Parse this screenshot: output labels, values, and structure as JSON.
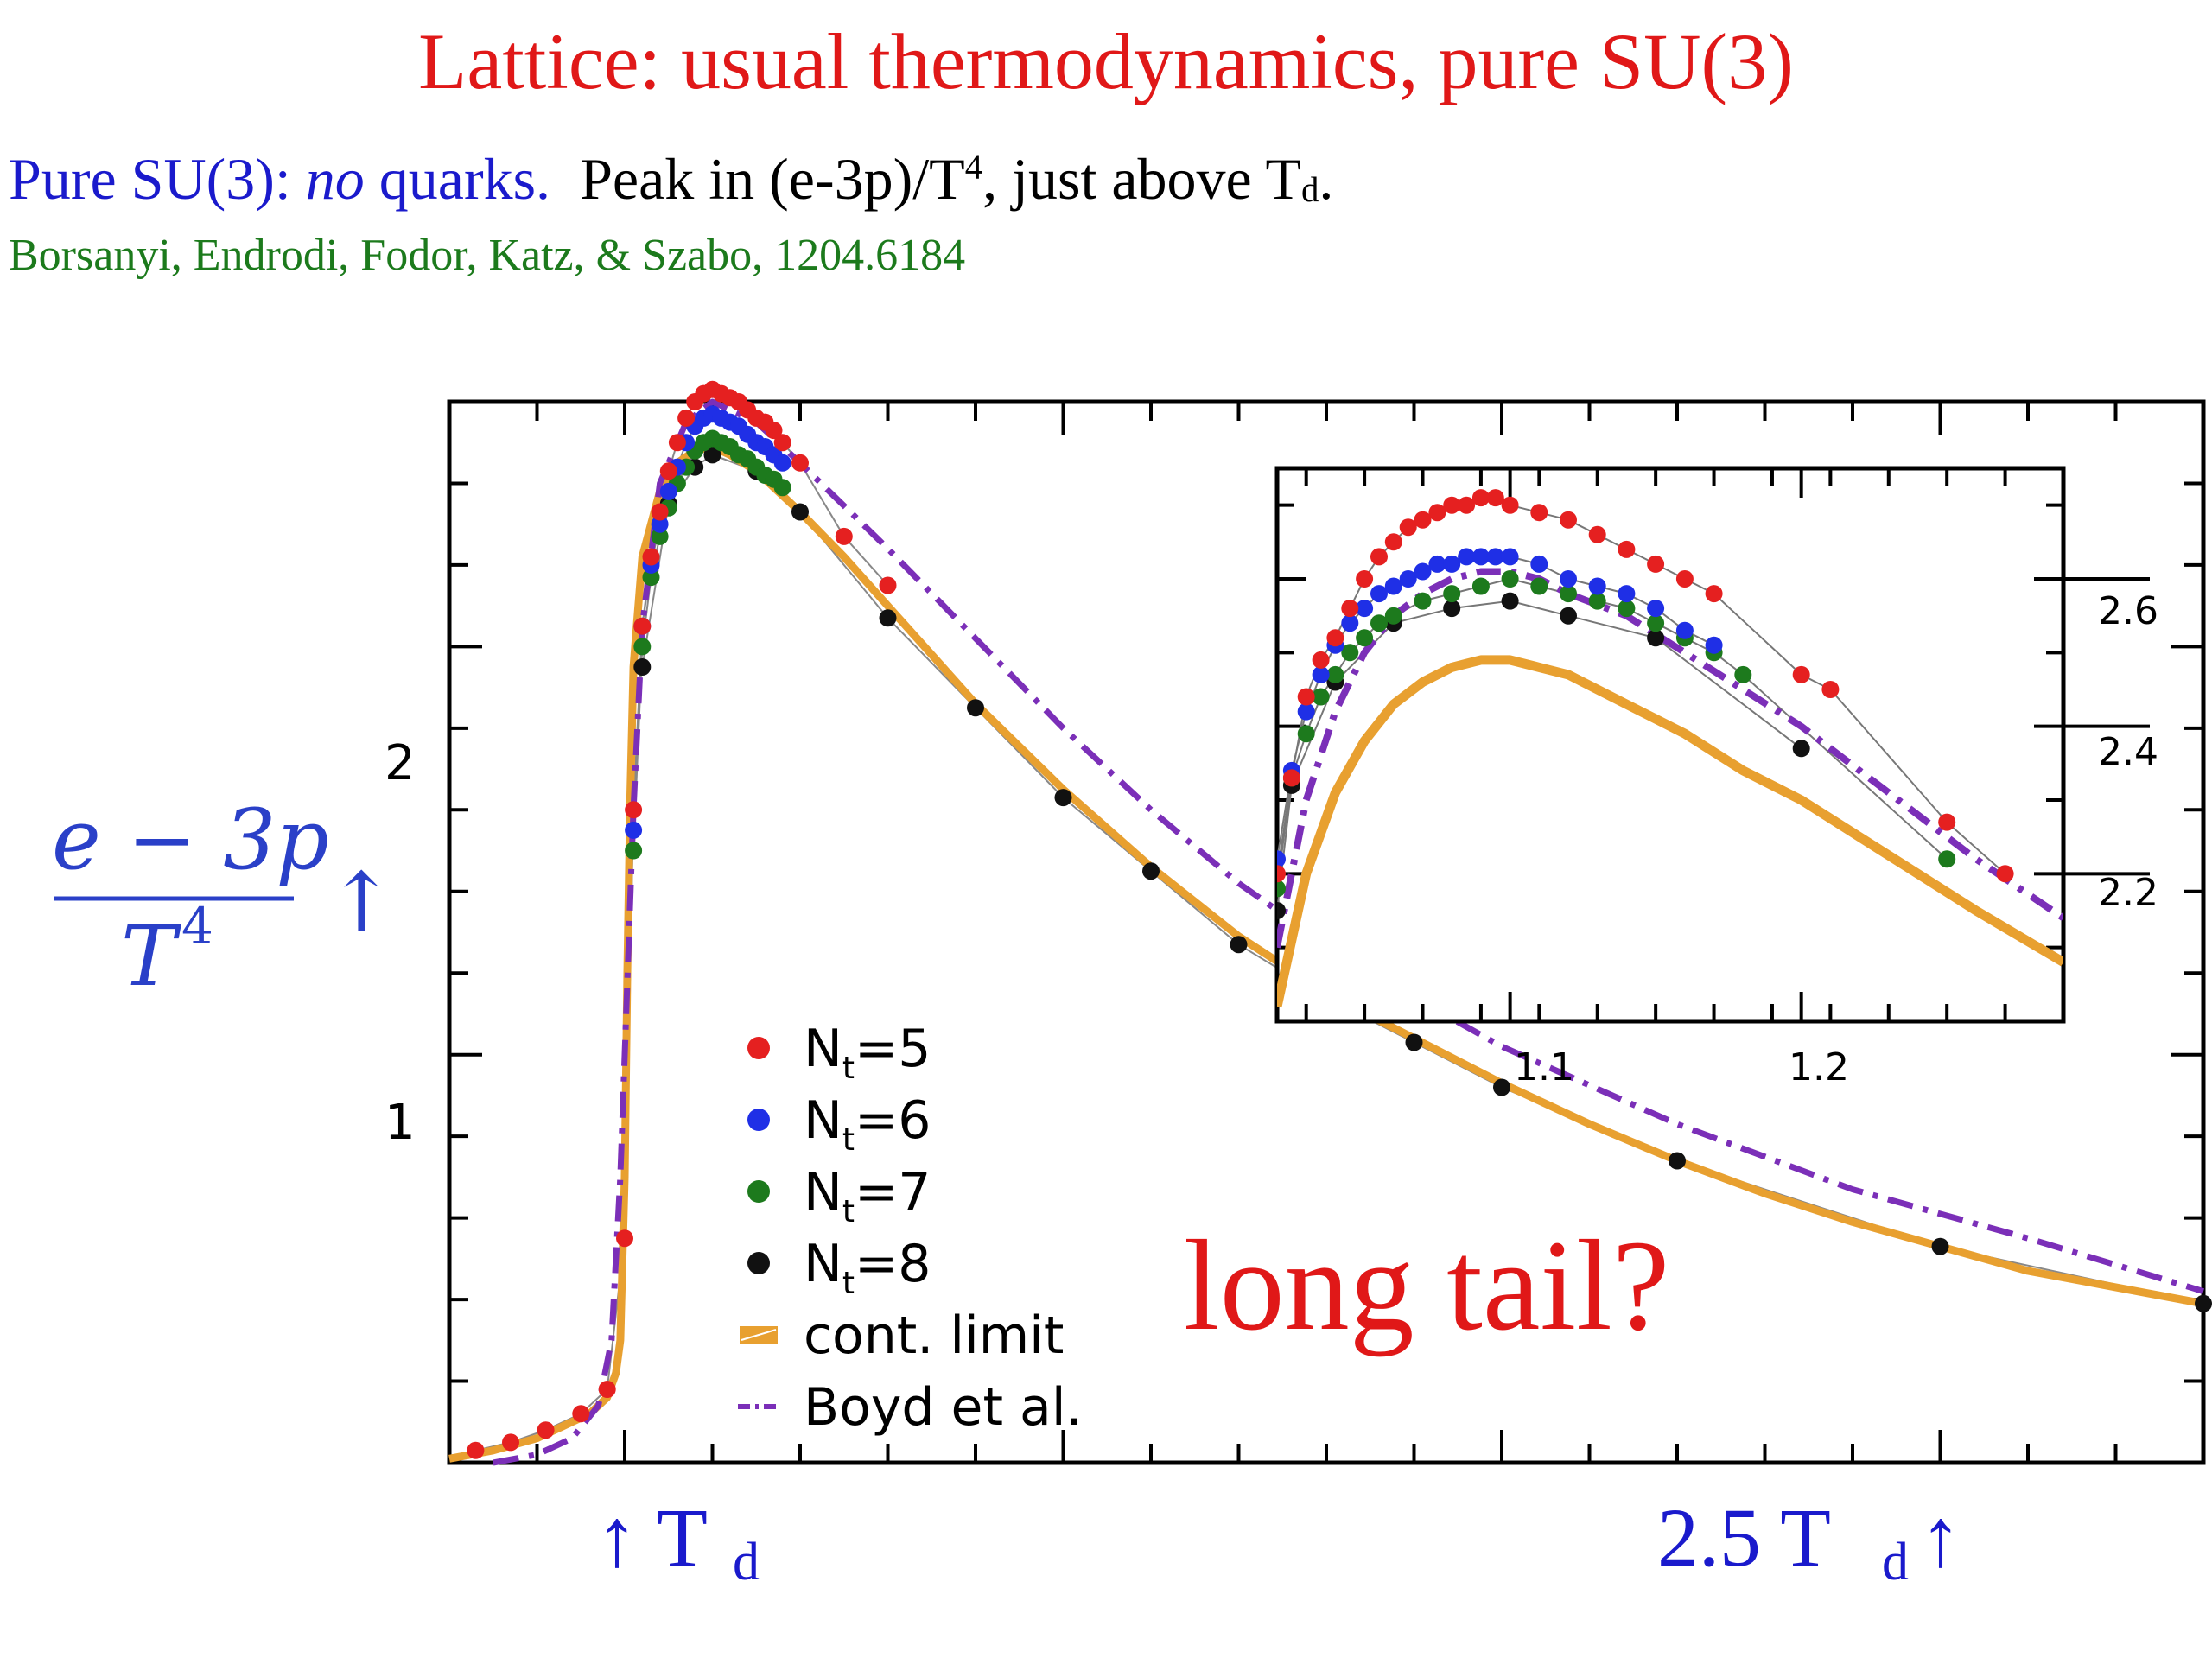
{
  "header": {
    "title": "Lattice: usual thermodynamics, pure SU(3)",
    "subtitle_blue_1": "Pure SU(3): ",
    "subtitle_blue_italic": "no",
    "subtitle_blue_2": " quarks.",
    "subtitle_black_1": "Peak in (e-3p)/T",
    "subtitle_sup": "4",
    "subtitle_black_2": ", just above T",
    "subtitle_sub": "d",
    "subtitle_black_3": ".",
    "citation": "Borsanyi, Endrodi, Fodor, Katz, & Szabo, 1204.6184"
  },
  "annotations": {
    "long_tail": "long tail?",
    "td_marker": "↑ T",
    "td_marker_sub": "d",
    "td25_marker": "2.5 T",
    "td25_marker_sub": "d",
    "td25_arrow": "↑"
  },
  "ylabel": {
    "numerator": "e − 3p",
    "denominator": "T",
    "denominator_sup": "4",
    "arrow": "↑"
  },
  "colors": {
    "title": "#e01818",
    "blue_text": "#1a1acc",
    "citation": "#1c7a1c",
    "nt5": "#e52020",
    "nt6": "#1f2fe6",
    "nt7": "#1d7a1d",
    "nt8": "#111111",
    "cont_limit": "#e8a030",
    "boyd": "#7b2fb8"
  },
  "chart_data": [
    {
      "id": "main",
      "type": "scatter",
      "xlabel": "",
      "ylabel": "(e − 3p)/T^4",
      "ylim": [
        0,
        2.6
      ],
      "yticks": [
        1,
        2
      ],
      "xlim": [
        0.8,
        2.8
      ],
      "td_marker_x": 1.0,
      "td25_marker_x": 2.5,
      "legend": {
        "position": "center-bottom",
        "entries": [
          {
            "label": "N",
            "sub": "t",
            "suffix": "=5",
            "series": "nt5"
          },
          {
            "label": "N",
            "sub": "t",
            "suffix": "=6",
            "series": "nt6"
          },
          {
            "label": "N",
            "sub": "t",
            "suffix": "=7",
            "series": "nt7"
          },
          {
            "label": "N",
            "sub": "t",
            "suffix": "=8",
            "series": "nt8"
          },
          {
            "label": "cont. limit",
            "series": "cont"
          },
          {
            "label": "Boyd et al.",
            "series": "boyd"
          }
        ]
      },
      "series": [
        {
          "key": "cont",
          "type": "line",
          "x": [
            0.8,
            0.85,
            0.9,
            0.93,
            0.96,
            0.98,
            0.99,
            0.995,
            1.0,
            1.003,
            1.006,
            1.01,
            1.02,
            1.04,
            1.06,
            1.08,
            1.1,
            1.12,
            1.15,
            1.2,
            1.25,
            1.3,
            1.35,
            1.4,
            1.5,
            1.6,
            1.7,
            1.8,
            1.9,
            2.0,
            2.1,
            2.2,
            2.3,
            2.4,
            2.5,
            2.6,
            2.7,
            2.8
          ],
          "y": [
            0.01,
            0.03,
            0.06,
            0.09,
            0.12,
            0.16,
            0.22,
            0.3,
            0.7,
            1.2,
            1.6,
            1.95,
            2.22,
            2.38,
            2.45,
            2.48,
            2.49,
            2.47,
            2.43,
            2.33,
            2.22,
            2.1,
            1.98,
            1.86,
            1.65,
            1.46,
            1.29,
            1.15,
            1.04,
            0.93,
            0.83,
            0.74,
            0.66,
            0.59,
            0.53,
            0.47,
            0.43,
            0.39
          ]
        },
        {
          "key": "boyd",
          "type": "line",
          "x": [
            0.85,
            0.9,
            0.94,
            0.97,
            0.985,
            0.995,
            1.0,
            1.01,
            1.02,
            1.04,
            1.07,
            1.1,
            1.15,
            1.2,
            1.3,
            1.4,
            1.5,
            1.6,
            1.7,
            1.8,
            1.9,
            2.0,
            2.2,
            2.4,
            2.6,
            2.8
          ],
          "y": [
            0.0,
            0.02,
            0.06,
            0.14,
            0.3,
            0.7,
            1.0,
            1.6,
            2.05,
            2.4,
            2.55,
            2.6,
            2.55,
            2.45,
            2.24,
            2.02,
            1.8,
            1.6,
            1.42,
            1.27,
            1.14,
            1.02,
            0.83,
            0.67,
            0.55,
            0.42
          ]
        },
        {
          "key": "nt5",
          "type": "scatter",
          "x": [
            0.83,
            0.87,
            0.91,
            0.95,
            0.98,
            1.0,
            1.01,
            1.02,
            1.03,
            1.04,
            1.05,
            1.06,
            1.07,
            1.08,
            1.09,
            1.1,
            1.11,
            1.12,
            1.13,
            1.14,
            1.15,
            1.16,
            1.17,
            1.18,
            1.2,
            1.25,
            1.3
          ],
          "y": [
            0.03,
            0.05,
            0.08,
            0.12,
            0.18,
            0.55,
            1.6,
            2.05,
            2.22,
            2.33,
            2.43,
            2.5,
            2.56,
            2.6,
            2.62,
            2.63,
            2.62,
            2.61,
            2.6,
            2.58,
            2.56,
            2.55,
            2.53,
            2.5,
            2.45,
            2.27,
            2.15
          ]
        },
        {
          "key": "nt6",
          "type": "scatter",
          "x": [
            1.01,
            1.02,
            1.03,
            1.04,
            1.05,
            1.06,
            1.07,
            1.08,
            1.09,
            1.1,
            1.11,
            1.12,
            1.13,
            1.14,
            1.15,
            1.16,
            1.17,
            1.18
          ],
          "y": [
            1.55,
            2.05,
            2.2,
            2.3,
            2.38,
            2.44,
            2.5,
            2.54,
            2.56,
            2.57,
            2.56,
            2.55,
            2.54,
            2.52,
            2.5,
            2.49,
            2.47,
            2.45
          ]
        },
        {
          "key": "nt7",
          "type": "scatter",
          "x": [
            1.01,
            1.02,
            1.03,
            1.04,
            1.05,
            1.06,
            1.07,
            1.08,
            1.09,
            1.1,
            1.11,
            1.12,
            1.13,
            1.14,
            1.15,
            1.16,
            1.17,
            1.18
          ],
          "y": [
            1.5,
            2.0,
            2.17,
            2.27,
            2.34,
            2.4,
            2.44,
            2.48,
            2.5,
            2.51,
            2.5,
            2.49,
            2.47,
            2.46,
            2.44,
            2.42,
            2.41,
            2.39
          ]
        },
        {
          "key": "nt8",
          "type": "scatter",
          "x": [
            1.02,
            1.05,
            1.08,
            1.1,
            1.15,
            1.2,
            1.3,
            1.4,
            1.5,
            1.6,
            1.7,
            1.8,
            1.9,
            2.0,
            2.2,
            2.5,
            2.8
          ],
          "y": [
            1.95,
            2.35,
            2.44,
            2.47,
            2.43,
            2.33,
            2.07,
            1.85,
            1.63,
            1.45,
            1.27,
            1.14,
            1.03,
            0.92,
            0.74,
            0.53,
            0.39
          ]
        }
      ]
    },
    {
      "id": "inset",
      "type": "scatter",
      "xlim": [
        1.02,
        1.29
      ],
      "ylim": [
        2.0,
        2.75
      ],
      "xticks": [
        1.1,
        1.2
      ],
      "yticks": [
        2.2,
        2.4,
        2.6
      ],
      "series": [
        {
          "key": "cont",
          "type": "line",
          "x": [
            1.02,
            1.03,
            1.04,
            1.05,
            1.06,
            1.07,
            1.08,
            1.09,
            1.1,
            1.11,
            1.12,
            1.14,
            1.16,
            1.18,
            1.2,
            1.22,
            1.24,
            1.26,
            1.29
          ],
          "y": [
            2.02,
            2.2,
            2.31,
            2.38,
            2.43,
            2.46,
            2.48,
            2.49,
            2.49,
            2.48,
            2.47,
            2.43,
            2.39,
            2.34,
            2.3,
            2.25,
            2.2,
            2.15,
            2.08
          ]
        },
        {
          "key": "boyd",
          "type": "line",
          "x": [
            1.02,
            1.03,
            1.04,
            1.05,
            1.06,
            1.07,
            1.08,
            1.09,
            1.1,
            1.11,
            1.12,
            1.14,
            1.16,
            1.18,
            1.2,
            1.22,
            1.24,
            1.26,
            1.29
          ],
          "y": [
            2.1,
            2.3,
            2.42,
            2.5,
            2.55,
            2.58,
            2.6,
            2.61,
            2.61,
            2.6,
            2.58,
            2.55,
            2.5,
            2.45,
            2.4,
            2.34,
            2.28,
            2.22,
            2.14
          ]
        },
        {
          "key": "nt5",
          "type": "scatter",
          "x": [
            1.02,
            1.025,
            1.03,
            1.035,
            1.04,
            1.045,
            1.05,
            1.055,
            1.06,
            1.065,
            1.07,
            1.075,
            1.08,
            1.085,
            1.09,
            1.095,
            1.1,
            1.11,
            1.12,
            1.13,
            1.14,
            1.15,
            1.16,
            1.17,
            1.2,
            1.21,
            1.25,
            1.27
          ],
          "y": [
            2.2,
            2.33,
            2.44,
            2.49,
            2.52,
            2.56,
            2.6,
            2.63,
            2.65,
            2.67,
            2.68,
            2.69,
            2.7,
            2.7,
            2.71,
            2.71,
            2.7,
            2.69,
            2.68,
            2.66,
            2.64,
            2.62,
            2.6,
            2.58,
            2.47,
            2.45,
            2.27,
            2.2
          ]
        },
        {
          "key": "nt6",
          "type": "scatter",
          "x": [
            1.015,
            1.02,
            1.025,
            1.03,
            1.035,
            1.04,
            1.045,
            1.05,
            1.055,
            1.06,
            1.065,
            1.07,
            1.075,
            1.08,
            1.085,
            1.09,
            1.095,
            1.1,
            1.11,
            1.12,
            1.13,
            1.14,
            1.15,
            1.16,
            1.17
          ],
          "y": [
            2.04,
            2.22,
            2.34,
            2.42,
            2.47,
            2.51,
            2.54,
            2.56,
            2.58,
            2.59,
            2.6,
            2.61,
            2.62,
            2.62,
            2.63,
            2.63,
            2.63,
            2.63,
            2.62,
            2.6,
            2.59,
            2.58,
            2.56,
            2.53,
            2.51
          ]
        },
        {
          "key": "nt7",
          "type": "scatter",
          "x": [
            1.02,
            1.025,
            1.03,
            1.035,
            1.04,
            1.045,
            1.05,
            1.055,
            1.06,
            1.07,
            1.08,
            1.09,
            1.1,
            1.11,
            1.12,
            1.13,
            1.14,
            1.15,
            1.16,
            1.17,
            1.18,
            1.25
          ],
          "y": [
            2.18,
            2.33,
            2.39,
            2.44,
            2.47,
            2.5,
            2.52,
            2.54,
            2.55,
            2.57,
            2.58,
            2.59,
            2.6,
            2.59,
            2.58,
            2.57,
            2.56,
            2.54,
            2.52,
            2.5,
            2.47,
            2.22
          ]
        },
        {
          "key": "nt8",
          "type": "scatter",
          "x": [
            1.02,
            1.025,
            1.04,
            1.06,
            1.08,
            1.1,
            1.12,
            1.15,
            1.2
          ],
          "y": [
            2.15,
            2.32,
            2.46,
            2.54,
            2.56,
            2.57,
            2.55,
            2.52,
            2.37
          ]
        }
      ]
    }
  ]
}
